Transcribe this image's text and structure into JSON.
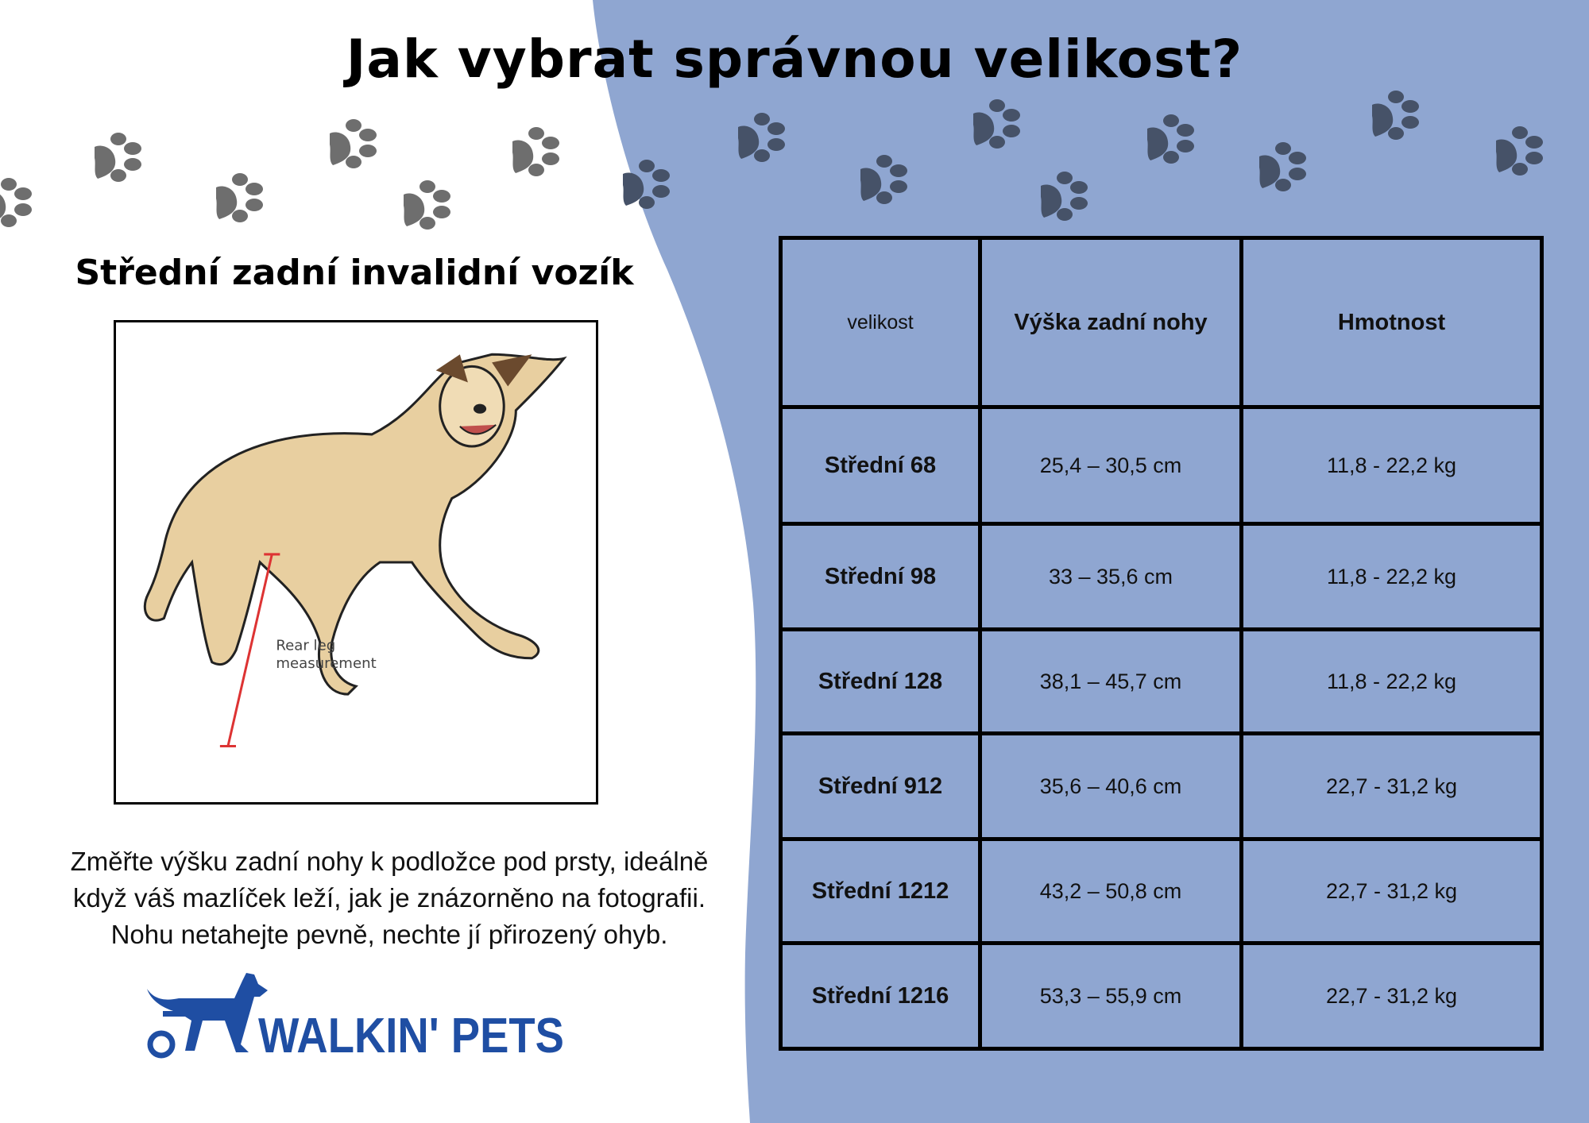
{
  "title": "Jak vybrat správnou velikost?",
  "subtitle": "Střední zadní invalidní vozík",
  "image": {
    "label_line1": "Rear leg",
    "label_line2": "measurement"
  },
  "instructions": [
    "Změřte výšku zadní nohy k podložce pod prsty, ideálně",
    "když váš mazlíček leží, jak je znázorněno na fotografii.",
    "Nohu netahejte pevně, nechte jí přirozený ohyb."
  ],
  "logo": {
    "text": "WALKIN' PETS"
  },
  "colors": {
    "panel": "#8fa6d1",
    "paw_dark": "#465268",
    "paw_gray": "#6e6e6e",
    "brand": "#1f4ea3"
  },
  "table": {
    "headers": [
      "velikost",
      "Výška zadní nohy",
      "Hmotnost"
    ],
    "rows": [
      [
        "Střední 68",
        "25,4 – 30,5 cm",
        "11,8 - 22,2 kg"
      ],
      [
        "Střední 98",
        "33 – 35,6 cm",
        "11,8 - 22,2 kg"
      ],
      [
        "Střední 128",
        "38,1 – 45,7 cm",
        "11,8 - 22,2 kg"
      ],
      [
        "Střední 912",
        "35,6 – 40,6 cm",
        "22,7 - 31,2 kg"
      ],
      [
        "Střední 1212",
        "43,2 – 50,8 cm",
        "22,7 - 31,2 kg"
      ],
      [
        "Střední 1216",
        "53,3 – 55,9 cm",
        "22,7 - 31,2 kg"
      ]
    ]
  }
}
